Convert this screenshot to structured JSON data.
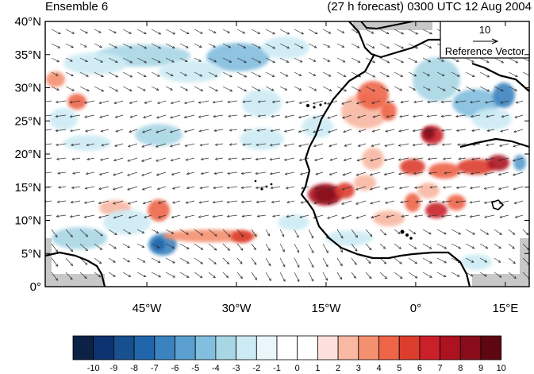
{
  "header": {
    "left_title": "Ensemble 6",
    "right_title": "(27 h forecast) 0300 UTC 12 Aug 2004"
  },
  "map": {
    "lon_range": [
      -62,
      19
    ],
    "lat_range": [
      0,
      40
    ],
    "y_ticks": [
      "0°",
      "5°N",
      "10°N",
      "15°N",
      "20°N",
      "25°N",
      "30°N",
      "35°N",
      "40°N"
    ],
    "x_ticks": [
      "45°W",
      "30°W",
      "15°W",
      "0°",
      "15°E"
    ],
    "land_outline_color": "#000000",
    "missing_data_color": "#c8c8c8"
  },
  "reference_vector": {
    "magnitude": "10",
    "label": "Reference Vector"
  },
  "colorbar": {
    "labels": [
      "-10",
      "-9",
      "-8",
      "-7",
      "-6",
      "-5",
      "-4",
      "-3",
      "-2",
      "-1",
      "0",
      "1",
      "2",
      "3",
      "4",
      "5",
      "6",
      "7",
      "8",
      "9",
      "10"
    ],
    "colors": [
      "#0b2146",
      "#0d3470",
      "#174f8f",
      "#2166ac",
      "#3a83bf",
      "#5a9fcf",
      "#82bede",
      "#a9d6e5",
      "#cdebf4",
      "#ebf6fb",
      "#ffffff",
      "#ffffff",
      "#fde0dd",
      "#f8b8a2",
      "#f4906f",
      "#ee6548",
      "#dc3d2d",
      "#c92029",
      "#ac1220",
      "#880c1a",
      "#5e0711"
    ]
  }
}
